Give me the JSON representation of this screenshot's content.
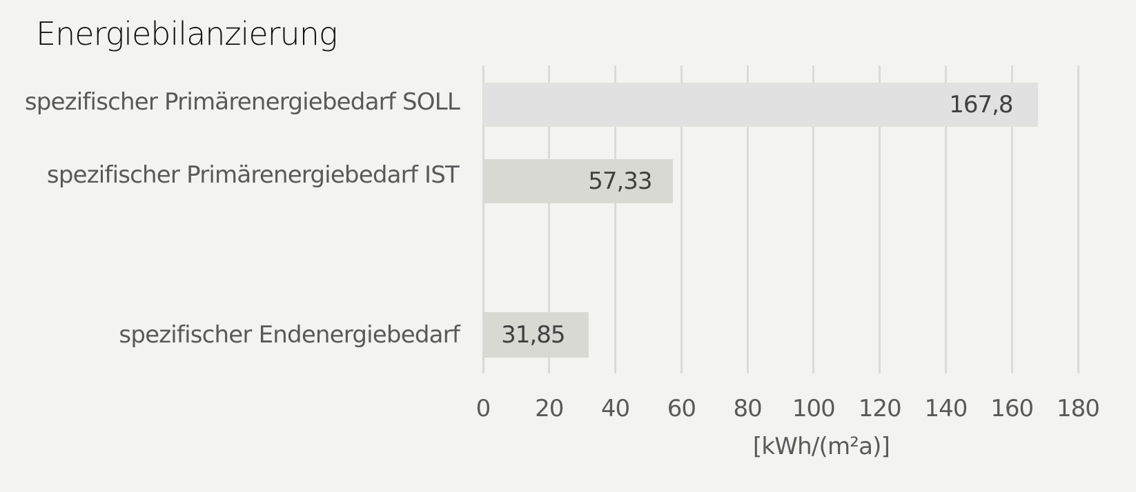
{
  "chart_data": {
    "type": "bar",
    "orientation": "horizontal",
    "title": "Energiebilanzierung",
    "categories": [
      "spezifischer Primärenergiebedarf SOLL",
      "spezifischer Primärenergiebedarf IST",
      "spezifischer Endenergiebedarf"
    ],
    "values": [
      167.8,
      57.33,
      31.85
    ],
    "value_labels": [
      "167,8",
      "57,33",
      "31,85"
    ],
    "bar_colors": [
      "#e1e1e1",
      "#d8d9d2",
      "#d8d9d2"
    ],
    "xlabel": "[kWh/(m²a)]",
    "ylabel": "",
    "xlim": [
      0,
      180
    ],
    "xticks": [
      "0",
      "20",
      "40",
      "60",
      "80",
      "100",
      "120",
      "140",
      "160",
      "180"
    ],
    "grid": true,
    "legend": null
  },
  "colors": {
    "background": "#f3f4ef",
    "grid": "#dadada",
    "text": "#595959",
    "value_text": "#404040"
  }
}
